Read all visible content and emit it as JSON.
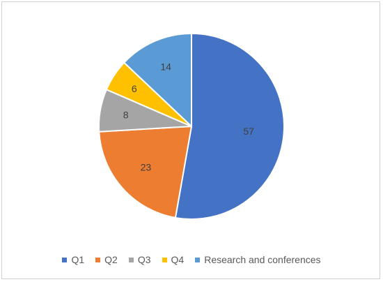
{
  "chart_data": {
    "type": "pie",
    "categories": [
      "Q1",
      "Q2",
      "Q3",
      "Q4",
      "Research and conferences"
    ],
    "values": [
      57,
      23,
      8,
      6,
      14
    ],
    "colors": [
      "#4472C4",
      "#ED7D31",
      "#A5A5A5",
      "#FFC000",
      "#5B9BD5"
    ],
    "data_labels": [
      "57",
      "23",
      "8",
      "6",
      "14"
    ],
    "legend_position": "bottom",
    "start_angle": "12 o'clock",
    "direction": "clockwise"
  }
}
